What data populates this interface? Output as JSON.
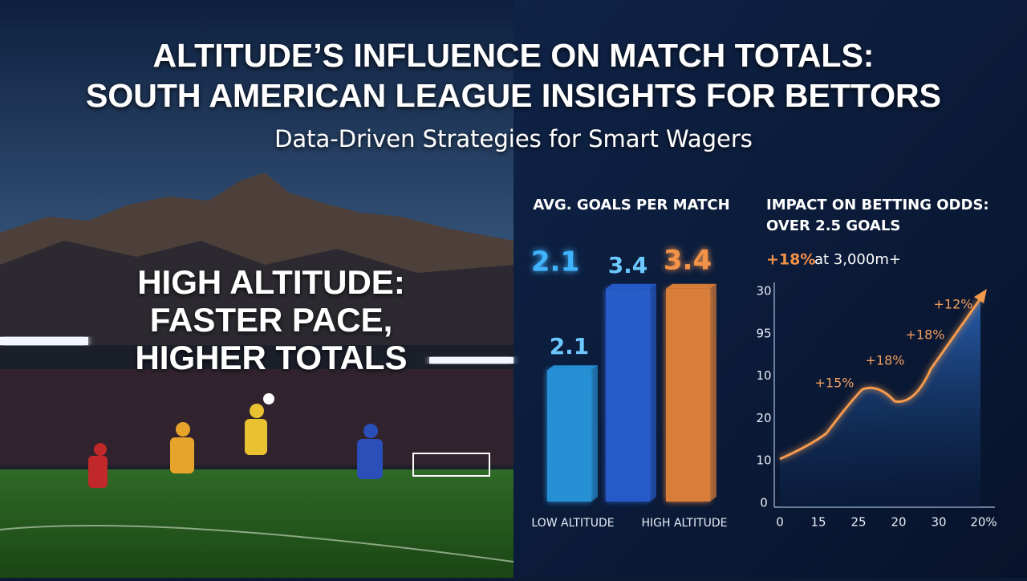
{
  "header": {
    "title": [
      "ALTITUDE’S INFLUENCE ON MATCH TOTALS:",
      "SOUTH AMERICAN LEAGUE INSIGHTS FOR BETTORS"
    ],
    "subtitle": "Data-Driven Strategies for Smart Wagers"
  },
  "hero": {
    "lines": [
      "HIGH ALTITUDE:",
      "FASTER PACE,",
      "HIGHER TOTALS"
    ]
  },
  "goals_chart": {
    "title": "AVG. GOALS PER MATCH",
    "categories": [
      "LOW ALTITUDE",
      null,
      "HIGH ALTITUDE"
    ],
    "values": [
      2.1,
      3.4,
      3.4
    ],
    "colors": [
      "#2a9de6",
      "#2a62d8",
      "#f0883a"
    ]
  },
  "odds_chart": {
    "title": [
      "IMPACT ON BETTING ODDS:",
      "OVER 2.5 GOALS"
    ],
    "highlight": "+18%",
    "highlight_note": "at 3,000m+",
    "y_labels": [
      "30",
      "95",
      "10",
      "20",
      "10",
      "0"
    ],
    "x_labels": [
      "0",
      "15",
      "25",
      "20",
      "30",
      "20%"
    ],
    "annotations": [
      "+15%",
      "+18%",
      "+18%",
      "+12%"
    ]
  }
}
